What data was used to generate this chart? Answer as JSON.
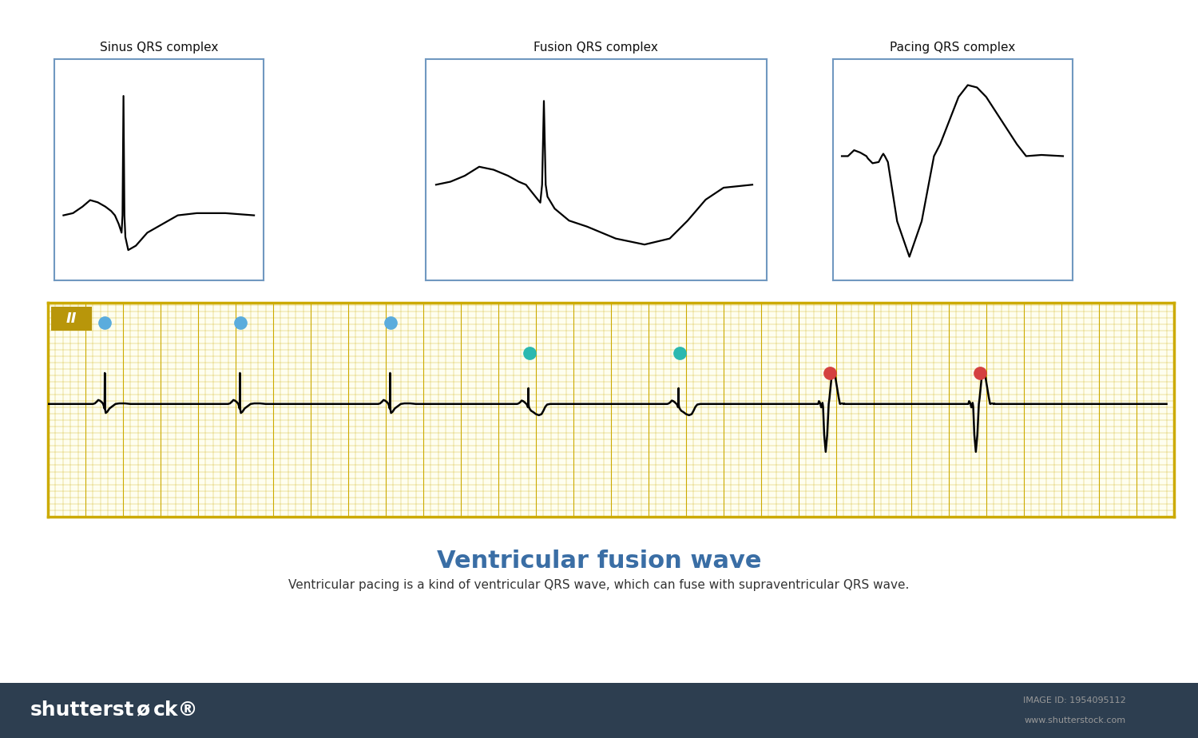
{
  "title": "Ventricular fusion wave",
  "subtitle": "Ventricular pacing is a kind of ventricular QRS wave, which can fuse with supraventricular QRS wave.",
  "title_color": "#3a6ea5",
  "subtitle_color": "#333333",
  "bg_color": "#ffffff",
  "ecg_grid_color": "#ccaa00",
  "ecg_bg_color": "#fefef0",
  "box_border_color": "#7aaard4",
  "lead_label": "II",
  "lead_label_bg": "#b8960a",
  "sinus_title": "Sinus QRS complex",
  "fusion_title": "Fusion QRS complex",
  "pacing_title": "Pacing QRS complex",
  "cyan_dot_color": "#2ab8b0",
  "blue_dot_color": "#5aacdd",
  "red_dot_color": "#d44040",
  "shutterstock_bar_color": "#2d3e50",
  "box_border_color2": "#7098c0"
}
